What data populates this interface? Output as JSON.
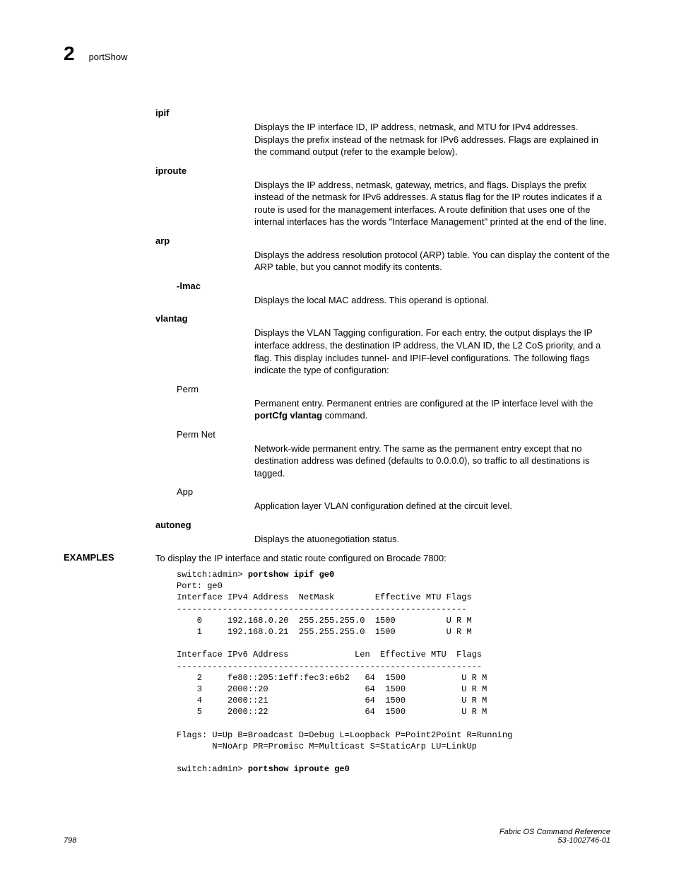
{
  "header": {
    "chapter": "2",
    "title": "portShow"
  },
  "entries": [
    {
      "term": "ipif",
      "bold": true,
      "indent": 0,
      "def": "Displays the IP interface ID, IP address, netmask, and MTU for IPv4 addresses. Displays the prefix instead of the netmask for IPv6 addresses. Flags are explained in the command output (refer to the example below)."
    },
    {
      "term": "iproute",
      "bold": true,
      "indent": 0,
      "def": "Displays the IP address, netmask, gateway, metrics, and flags. Displays the prefix instead of the netmask for IPv6 addresses. A status flag for the IP routes indicates if a route is used for the management interfaces. A route definition that uses one of the internal interfaces has the words \"Interface Management\" printed at the end of the line."
    },
    {
      "term": "arp",
      "bold": true,
      "indent": 0,
      "def": "Displays the address resolution protocol (ARP) table. You can display the content of the ARP table, but you cannot modify its contents."
    },
    {
      "term": "-lmac",
      "bold": true,
      "indent": 1,
      "def": "Displays the local MAC address. This operand is optional."
    },
    {
      "term": "vlantag",
      "bold": true,
      "indent": 0,
      "def": "Displays the VLAN Tagging configuration. For each entry, the output displays the IP interface address, the destination IP address, the VLAN ID, the L2 CoS priority, and a flag. This display includes tunnel- and IPIF-level configurations. The following flags indicate the type of configuration:"
    },
    {
      "term": "Perm",
      "bold": false,
      "indent": 1,
      "def_prefix": "Permanent entry. Permanent entries are configured at the IP interface level with the ",
      "def_bold": "portCfg vlantag",
      "def_suffix": " command."
    },
    {
      "term": "Perm Net",
      "bold": false,
      "indent": 1,
      "def": "Network-wide permanent entry. The same as the permanent entry except that no destination address was defined (defaults to 0.0.0.0), so traffic to all destinations is tagged."
    },
    {
      "term": "App",
      "bold": false,
      "indent": 1,
      "def": "Application layer VLAN configuration defined at the circuit level."
    },
    {
      "term": "autoneg",
      "bold": true,
      "indent": 0,
      "def": "Displays the atuonegotiation status."
    }
  ],
  "examples": {
    "label": "EXAMPLES",
    "intro": "To display the IP interface and static route configured on Brocade 7800:",
    "prompt1": "switch:admin> ",
    "cmd1": "portshow ipif ge0",
    "output1": "\nPort: ge0\nInterface IPv4 Address  NetMask        Effective MTU Flags\n---------------------------------------------------------\n    0     192.168.0.20  255.255.255.0  1500          U R M\n    1     192.168.0.21  255.255.255.0  1500          U R M\n\nInterface IPv6 Address             Len  Effective MTU  Flags\n------------------------------------------------------------\n    2     fe80::205:1eff:fec3:e6b2   64  1500           U R M\n    3     2000::20                   64  1500           U R M\n    4     2000::21                   64  1500           U R M\n    5     2000::22                   64  1500           U R M\n\nFlags: U=Up B=Broadcast D=Debug L=Loopback P=Point2Point R=Running\n       N=NoArp PR=Promisc M=Multicast S=StaticArp LU=LinkUp\n\n",
    "prompt2": "switch:admin> ",
    "cmd2": "portshow iproute ge0"
  },
  "footer": {
    "page": "798",
    "doc_title": "Fabric OS Command Reference",
    "doc_num": "53-1002746-01"
  }
}
